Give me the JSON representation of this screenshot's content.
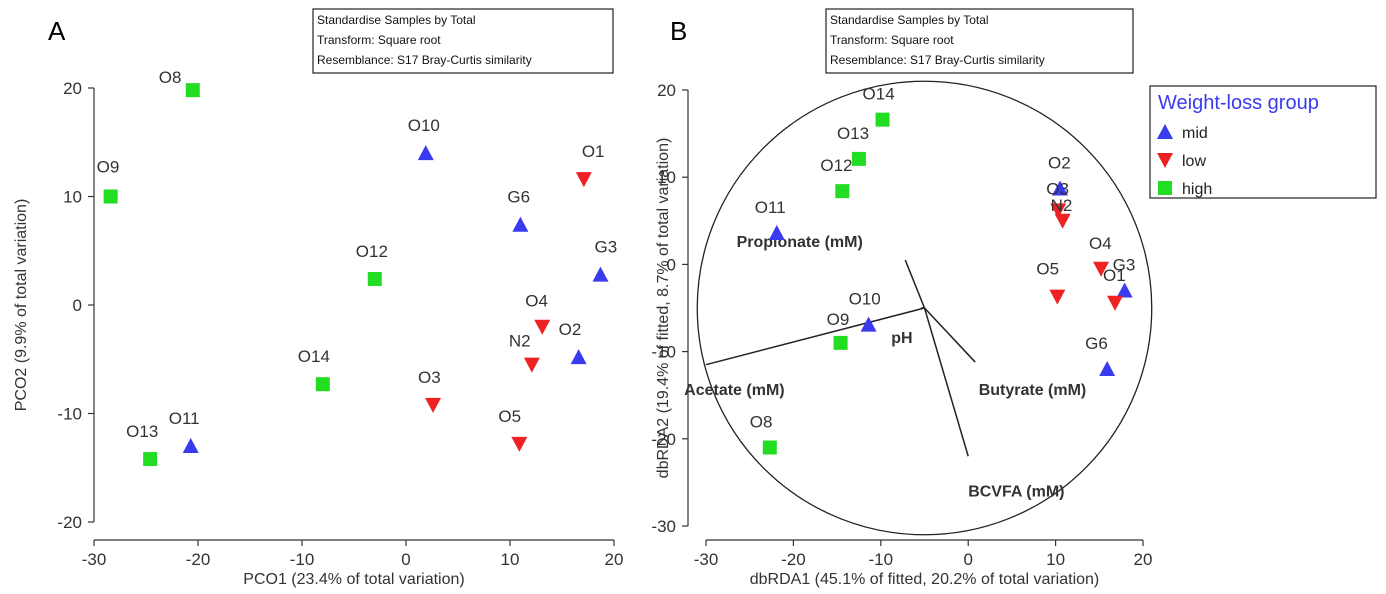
{
  "colors": {
    "mid": "#3a3aee",
    "low": "#ee2222",
    "high": "#22dd22",
    "axis": "#333333",
    "legend_title": "#3a3aee"
  },
  "legend": {
    "title": "Weight-loss group",
    "items": [
      {
        "group": "mid",
        "label": "mid"
      },
      {
        "group": "low",
        "label": "low"
      },
      {
        "group": "high",
        "label": "high"
      }
    ]
  },
  "chart_data": [
    {
      "panel": "A",
      "type": "scatter",
      "xlabel": "PCO1 (23.4% of total variation)",
      "ylabel": "PCO2 (9.9% of total variation)",
      "xlim": [
        -30,
        20
      ],
      "ylim": [
        -20,
        20
      ],
      "xticks": [
        -30,
        -20,
        -10,
        0,
        10,
        20
      ],
      "yticks": [
        -20,
        -10,
        0,
        10,
        20
      ],
      "annotation": [
        "Standardise Samples by Total",
        "Transform: Square root",
        "Resemblance: S17 Bray-Curtis similarity"
      ],
      "points": [
        {
          "label": "O8",
          "group": "high",
          "x": -20.5,
          "y": 19.8
        },
        {
          "label": "O9",
          "group": "high",
          "x": -28.4,
          "y": 10.0
        },
        {
          "label": "O10",
          "group": "mid",
          "x": 1.9,
          "y": 14.0
        },
        {
          "label": "O1",
          "group": "low",
          "x": 17.1,
          "y": 11.6
        },
        {
          "label": "G6",
          "group": "mid",
          "x": 11.0,
          "y": 7.4
        },
        {
          "label": "G3",
          "group": "mid",
          "x": 18.7,
          "y": 2.8
        },
        {
          "label": "O12",
          "group": "high",
          "x": -3.0,
          "y": 2.4
        },
        {
          "label": "O4",
          "group": "low",
          "x": 13.1,
          "y": -2.0
        },
        {
          "label": "N2",
          "group": "low",
          "x": 12.1,
          "y": -5.5
        },
        {
          "label": "O2",
          "group": "mid",
          "x": 16.6,
          "y": -4.8
        },
        {
          "label": "O14",
          "group": "high",
          "x": -8.0,
          "y": -7.3
        },
        {
          "label": "O3",
          "group": "low",
          "x": 2.6,
          "y": -9.2
        },
        {
          "label": "O5",
          "group": "low",
          "x": 10.9,
          "y": -12.8
        },
        {
          "label": "O11",
          "group": "mid",
          "x": -20.7,
          "y": -13.0
        },
        {
          "label": "O13",
          "group": "high",
          "x": -24.6,
          "y": -14.2
        }
      ],
      "label_offsets": {
        "O8": [
          -34,
          -7
        ],
        "O9": [
          -14,
          -24
        ],
        "O10": [
          -18,
          -22
        ],
        "O1": [
          -2,
          -22
        ],
        "G6": [
          -13,
          -22
        ],
        "G3": [
          -6,
          -22
        ],
        "O12": [
          -19,
          -22
        ],
        "O4": [
          -17,
          -20
        ],
        "N2": [
          -23,
          -18
        ],
        "O2": [
          -20,
          -22
        ],
        "O14": [
          -25,
          -22
        ],
        "O3": [
          -15,
          -22
        ],
        "O5": [
          -21,
          -22
        ],
        "O11": [
          -22,
          -22
        ],
        "O13": [
          -24,
          -22
        ]
      }
    },
    {
      "panel": "B",
      "type": "scatter",
      "xlabel": "dbRDA1 (45.1% of fitted, 20.2% of total variation)",
      "ylabel": "dbRDA2 (19.4% of fitted, 8.7% of total variation)",
      "xlim": [
        -30,
        20
      ],
      "ylim": [
        -30,
        20
      ],
      "xticks": [
        -30,
        -20,
        -10,
        0,
        10,
        20
      ],
      "yticks": [
        -30,
        -20,
        -10,
        0,
        10,
        20
      ],
      "annotation": [
        "Standardise Samples by Total",
        "Transform: Square root",
        "Resemblance: S17 Bray-Curtis similarity"
      ],
      "points": [
        {
          "label": "O14",
          "group": "high",
          "x": -9.8,
          "y": 16.6
        },
        {
          "label": "O13",
          "group": "high",
          "x": -12.5,
          "y": 12.1
        },
        {
          "label": "O12",
          "group": "high",
          "x": -14.4,
          "y": 8.4
        },
        {
          "label": "O2",
          "group": "mid",
          "x": 10.5,
          "y": 8.7
        },
        {
          "label": "O3",
          "group": "low",
          "x": 10.3,
          "y": 6.2
        },
        {
          "label": "N2",
          "group": "low",
          "x": 10.8,
          "y": 5.0
        },
        {
          "label": "O11",
          "group": "mid",
          "x": -21.9,
          "y": 3.6
        },
        {
          "label": "O4",
          "group": "low",
          "x": 15.2,
          "y": -0.5
        },
        {
          "label": "G3",
          "group": "mid",
          "x": 17.9,
          "y": -3.0
        },
        {
          "label": "O1",
          "group": "low",
          "x": 16.8,
          "y": -4.4
        },
        {
          "label": "O5",
          "group": "low",
          "x": 10.2,
          "y": -3.7
        },
        {
          "label": "O10",
          "group": "mid",
          "x": -11.4,
          "y": -6.9
        },
        {
          "label": "O9",
          "group": "high",
          "x": -14.6,
          "y": -9.0
        },
        {
          "label": "G6",
          "group": "mid",
          "x": 15.9,
          "y": -12.0
        },
        {
          "label": "O8",
          "group": "high",
          "x": -22.7,
          "y": -21.0
        }
      ],
      "label_offsets": {
        "O14": [
          -20,
          -20
        ],
        "O13": [
          -22,
          -20
        ],
        "O12": [
          -22,
          -20
        ],
        "O2": [
          -12,
          -20
        ],
        "O3": [
          -12,
          -16
        ],
        "N2": [
          -12,
          -10
        ],
        "O11": [
          -22,
          -20
        ],
        "O4": [
          -12,
          -20
        ],
        "G3": [
          -12,
          -20
        ],
        "O1": [
          -12,
          -22
        ],
        "O5": [
          -21,
          -22
        ],
        "O10": [
          -20,
          -20
        ],
        "O9": [
          -14,
          -18
        ],
        "G6": [
          -22,
          -20
        ],
        "O8": [
          -20,
          -20
        ]
      },
      "circle": {
        "center": [
          -5.0,
          -5.0
        ],
        "radius": 26.0
      },
      "vectors": [
        {
          "label": "Propionate (mM)",
          "end": [
            -7.2,
            0.5
          ],
          "label_at": [
            -26.5,
            2.0
          ]
        },
        {
          "label": "pH",
          "end": [
            -5.4,
            -5.0
          ],
          "label_at": [
            -8.8,
            -9.0
          ]
        },
        {
          "label": "Acetate (mM)",
          "end": [
            -30.0,
            -11.5
          ],
          "label_at": [
            -32.5,
            -15.0
          ]
        },
        {
          "label": "Butyrate (mM)",
          "end": [
            0.8,
            -11.2
          ],
          "label_at": [
            1.2,
            -15.0
          ]
        },
        {
          "label": "BCVFA (mM)",
          "end": [
            0.0,
            -22.0
          ],
          "label_at": [
            0.0,
            -26.6
          ]
        }
      ]
    }
  ]
}
